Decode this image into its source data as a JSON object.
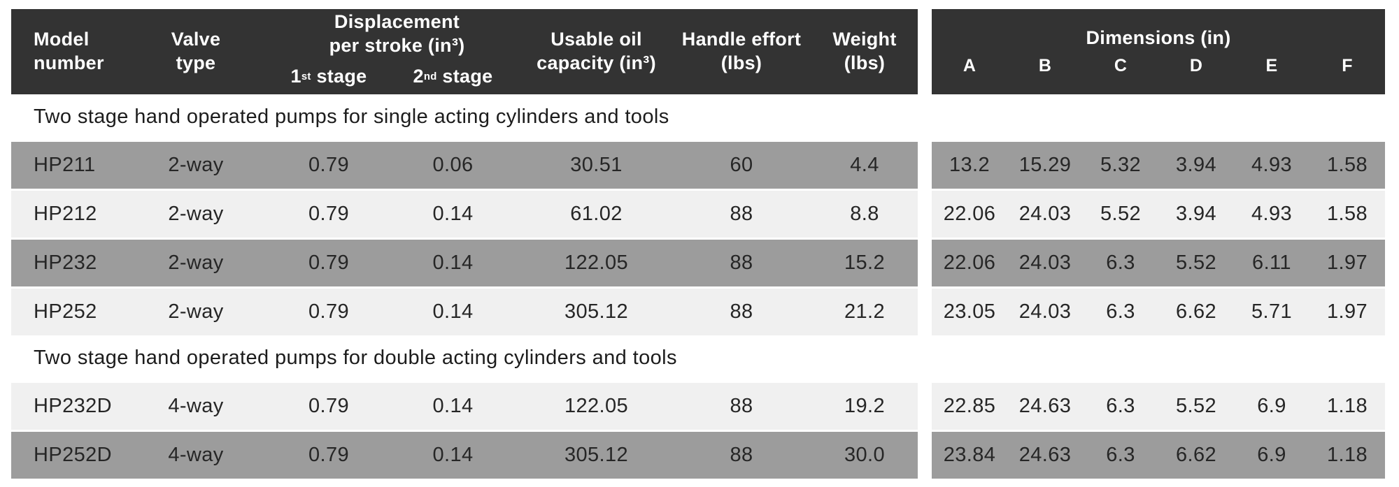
{
  "colors": {
    "header_bg": "#333333",
    "header_text": "#ffffff",
    "row_dark": "#9c9c9c",
    "row_light": "#f0f0f0"
  },
  "left_header": {
    "model": "Model\nnumber",
    "valve": "Valve\ntype",
    "displacement_title": "Displacement\nper stroke (in³)",
    "stage1": {
      "num": "1",
      "sup": "st",
      "rest": " stage"
    },
    "stage2": {
      "num": "2",
      "sup": "nd",
      "rest": " stage"
    },
    "capacity": "Usable oil\ncapacity (in³)",
    "effort": "Handle effort\n(lbs)",
    "weight": "Weight\n(lbs)"
  },
  "right_header": {
    "title": "Dimensions (in)",
    "columns": [
      "A",
      "B",
      "C",
      "D",
      "E",
      "F"
    ]
  },
  "sections": [
    {
      "title": "Two stage hand operated pumps for single acting cylinders and tools",
      "rows": [
        {
          "model": "HP211",
          "valve": "2-way",
          "stage1": "0.79",
          "stage2": "0.06",
          "capacity": "30.51",
          "effort": "60",
          "weight": "4.4",
          "dims": [
            "13.2",
            "15.29",
            "5.32",
            "3.94",
            "4.93",
            "1.58"
          ],
          "shade": "dark"
        },
        {
          "model": "HP212",
          "valve": "2-way",
          "stage1": "0.79",
          "stage2": "0.14",
          "capacity": "61.02",
          "effort": "88",
          "weight": "8.8",
          "dims": [
            "22.06",
            "24.03",
            "5.52",
            "3.94",
            "4.93",
            "1.58"
          ],
          "shade": "light"
        },
        {
          "model": "HP232",
          "valve": "2-way",
          "stage1": "0.79",
          "stage2": "0.14",
          "capacity": "122.05",
          "effort": "88",
          "weight": "15.2",
          "dims": [
            "22.06",
            "24.03",
            "6.3",
            "5.52",
            "6.11",
            "1.97"
          ],
          "shade": "dark"
        },
        {
          "model": "HP252",
          "valve": "2-way",
          "stage1": "0.79",
          "stage2": "0.14",
          "capacity": "305.12",
          "effort": "88",
          "weight": "21.2",
          "dims": [
            "23.05",
            "24.03",
            "6.3",
            "6.62",
            "5.71",
            "1.97"
          ],
          "shade": "light"
        }
      ]
    },
    {
      "title": "Two stage hand operated pumps for double acting cylinders and tools",
      "rows": [
        {
          "model": "HP232D",
          "valve": "4-way",
          "stage1": "0.79",
          "stage2": "0.14",
          "capacity": "122.05",
          "effort": "88",
          "weight": "19.2",
          "dims": [
            "22.85",
            "24.63",
            "6.3",
            "5.52",
            "6.9",
            "1.18"
          ],
          "shade": "light"
        },
        {
          "model": "HP252D",
          "valve": "4-way",
          "stage1": "0.79",
          "stage2": "0.14",
          "capacity": "305.12",
          "effort": "88",
          "weight": "30.0",
          "dims": [
            "23.84",
            "24.63",
            "6.3",
            "6.62",
            "6.9",
            "1.18"
          ],
          "shade": "dark"
        }
      ]
    }
  ]
}
